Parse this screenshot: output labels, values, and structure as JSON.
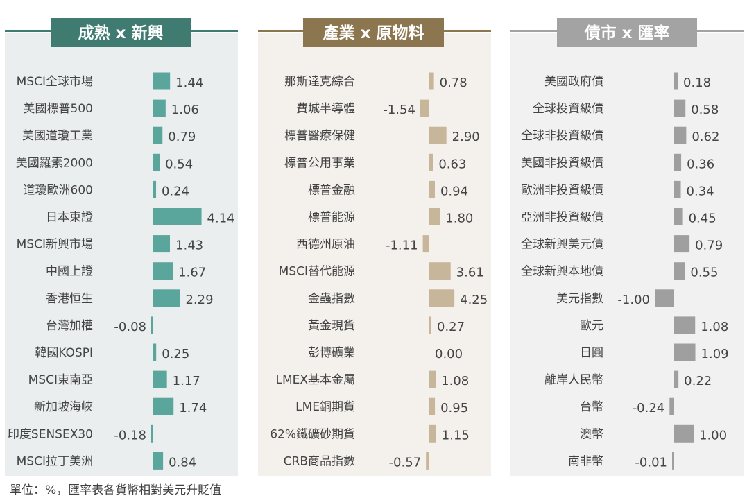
{
  "footnote": "單位：%，匯率表各貨幣相對美元升貶值",
  "chart_data": [
    {
      "type": "bar",
      "title": "成熟 x 新興",
      "colors": {
        "bar": "#5aa69d",
        "header": "#3f7b71",
        "panel": "#ebeeee",
        "rule": "#3f7b71"
      },
      "categories": [
        "MSCI全球市場",
        "美國標普500",
        "美國道瓊工業",
        "美國羅素2000",
        "道瓊歐洲600",
        "日本東證",
        "MSCI新興市場",
        "中國上證",
        "香港恒生",
        "台灣加權",
        "韓國KOSPI",
        "MSCI東南亞",
        "新加坡海峽",
        "印度SENSEX30",
        "MSCI拉丁美洲"
      ],
      "values": [
        1.44,
        1.06,
        0.79,
        0.54,
        0.24,
        4.14,
        1.43,
        1.67,
        2.29,
        -0.08,
        0.25,
        1.17,
        1.74,
        -0.18,
        0.84
      ],
      "labels": [
        "1.44",
        "1.06",
        "0.79",
        "0.54",
        "0.24",
        "4.14",
        "1.43",
        "1.67",
        "2.29",
        "-0.08",
        "0.25",
        "1.17",
        "1.74",
        "-0.18",
        "0.84"
      ]
    },
    {
      "type": "bar",
      "title": "產業 x 原物料",
      "colors": {
        "bar": "#c8b69a",
        "header": "#8c7650",
        "panel": "#f4f1ed",
        "rule": "#8c7650"
      },
      "categories": [
        "那斯達克綜合",
        "費城半導體",
        "標普醫療保健",
        "標普公用事業",
        "標普金融",
        "標普能源",
        "西德州原油",
        "MSCI替代能源",
        "金蟲指數",
        "黃金現貨",
        "彭博礦業",
        "LMEX基本金屬",
        "LME銅期貨",
        "62%鐵礦砂期貨",
        "CRB商品指數"
      ],
      "values": [
        0.78,
        -1.54,
        2.9,
        0.63,
        0.94,
        1.8,
        -1.11,
        3.61,
        4.25,
        0.27,
        0.0,
        1.08,
        0.95,
        1.15,
        -0.57
      ],
      "labels": [
        "0.78",
        "-1.54",
        "2.90",
        "0.63",
        "0.94",
        "1.80",
        "-1.11",
        "3.61",
        "4.25",
        "0.27",
        "0.00",
        "1.08",
        "0.95",
        "1.15",
        "-0.57"
      ]
    },
    {
      "type": "bar",
      "title": "債市 x 匯率",
      "colors": {
        "bar": "#9f9f9f",
        "header": "#a3a3a3",
        "panel": "#f1f1f1",
        "rule": "#a3a3a3"
      },
      "categories": [
        "美國政府債",
        "全球投資級債",
        "全球非投資級債",
        "美國非投資級債",
        "歐洲非投資級債",
        "亞洲非投資級債",
        "全球新興美元債",
        "全球新興本地債",
        "美元指數",
        "歐元",
        "日圓",
        "離岸人民幣",
        "台幣",
        "澳幣",
        "南非幣"
      ],
      "values": [
        0.18,
        0.58,
        0.62,
        0.36,
        0.34,
        0.45,
        0.79,
        0.55,
        -1.0,
        1.08,
        1.09,
        0.22,
        -0.24,
        1.0,
        -0.01
      ],
      "labels": [
        "0.18",
        "0.58",
        "0.62",
        "0.36",
        "0.34",
        "0.45",
        "0.79",
        "0.55",
        "-1.00",
        "1.08",
        "1.09",
        "0.22",
        "-0.24",
        "1.00",
        "-0.01"
      ]
    }
  ]
}
